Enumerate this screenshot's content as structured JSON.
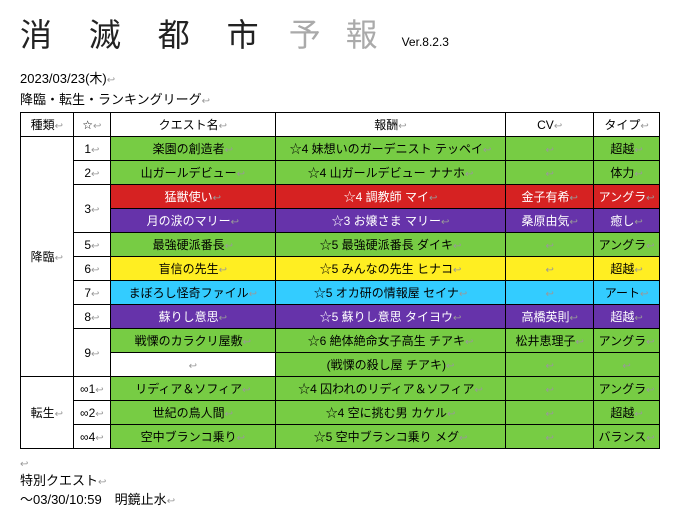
{
  "header": {
    "title_main": "消 滅 都 市",
    "title_sub": "予 報",
    "version": "Ver.8.2.3"
  },
  "date_line": "2023/03/23(木)",
  "section_title": "降臨・転生・ランキングリーグ",
  "colors": {
    "green": "#77cc44",
    "red": "#d62222",
    "purple": "#6633aa",
    "yellow": "#ffee22",
    "cyan": "#33ccff",
    "white": "#ffffff"
  },
  "columns": [
    "種類",
    "☆",
    "クエスト名",
    "報酬",
    "CV",
    "タイプ"
  ],
  "groups": [
    {
      "type_label": "降臨",
      "rows": [
        {
          "star": "1",
          "quest": "楽園の創造者",
          "reward": "☆4 妹想いのガーデニスト テッペイ",
          "cv": "",
          "tag": "超越",
          "color": "green"
        },
        {
          "star": "2",
          "quest": "山ガールデビュー",
          "reward": "☆4 山ガールデビュー ナナホ",
          "cv": "",
          "tag": "体力",
          "color": "green"
        },
        {
          "star": "3",
          "quest": "猛獣使い",
          "reward": "☆4 調教師 マイ",
          "cv": "金子有希",
          "tag": "アングラ",
          "color": "red",
          "star_rowspan": 2
        },
        {
          "quest": "月の涙のマリー",
          "reward": "☆3 お嬢さま マリー",
          "cv": "桑原由気",
          "tag": "癒し",
          "color": "purple"
        },
        {
          "star": "5",
          "quest": "最強硬派番長",
          "reward": "☆5 最強硬派番長 ダイキ",
          "cv": "",
          "tag": "アングラ",
          "color": "green"
        },
        {
          "star": "6",
          "quest": "盲信の先生",
          "reward": "☆5 みんなの先生 ヒナコ",
          "cv": "",
          "tag": "超越",
          "color": "yellow"
        },
        {
          "star": "7",
          "quest": "まぼろし怪奇ファイル",
          "reward": "☆5 オカ研の情報屋 セイナ",
          "cv": "",
          "tag": "アート",
          "color": "cyan"
        },
        {
          "star": "8",
          "quest": "蘇りし意思",
          "reward": "☆5 蘇りし意思 タイヨウ",
          "cv": "高橋英則",
          "tag": "超越",
          "color": "purple"
        },
        {
          "star": "9",
          "quest": "戦慄のカラクリ屋敷",
          "reward": "☆6 絶体絶命女子高生 チアキ",
          "cv": "松井恵理子",
          "tag": "アングラ",
          "color": "green",
          "star_rowspan": 2
        },
        {
          "reward": "(戦慄の殺し屋 チアキ)",
          "cv": "",
          "tag": "",
          "color": "green",
          "quest_bg": "white"
        }
      ]
    },
    {
      "type_label": "転生",
      "rows": [
        {
          "star": "∞1",
          "quest": "リディア＆ソフィア",
          "reward": "☆4 囚われのリディア＆ソフィア",
          "cv": "",
          "tag": "アングラ",
          "color": "green"
        },
        {
          "star": "∞2",
          "quest": "世紀の鳥人間",
          "reward": "☆4 空に挑む男 カケル",
          "cv": "",
          "tag": "超越",
          "color": "green"
        },
        {
          "star": "∞4",
          "quest": "空中ブランコ乗り",
          "reward": "☆5 空中ブランコ乗り メグ",
          "cv": "",
          "tag": "バランス",
          "color": "green"
        }
      ]
    }
  ],
  "footer": {
    "special_label": "特別クエスト",
    "special_line": "～03/30/10:59　明鏡止水"
  }
}
